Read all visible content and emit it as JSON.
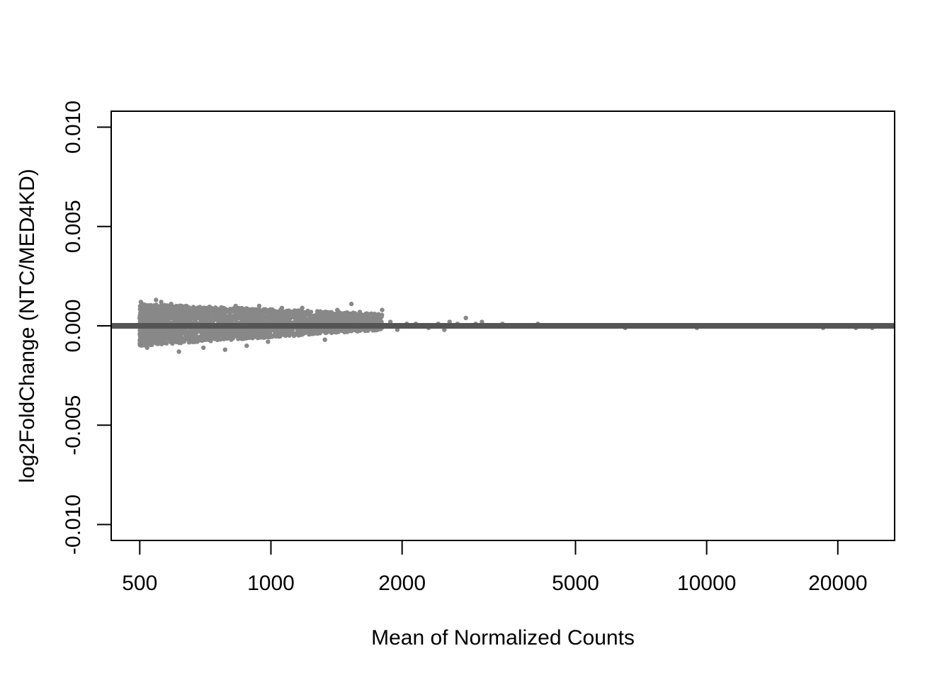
{
  "chart_data": {
    "type": "scatter",
    "title": "",
    "xlabel": "Mean of Normalized Counts",
    "ylabel": "log2FoldChange (NTC/MED4KD)",
    "x_scale": "log",
    "xlim": [
      430,
      27000
    ],
    "ylim": [
      -0.0108,
      0.0108
    ],
    "x_ticks": [
      500,
      1000,
      2000,
      5000,
      10000,
      20000
    ],
    "x_tick_labels": [
      "500",
      "1000",
      "2000",
      "5000",
      "10000",
      "20000"
    ],
    "y_ticks": [
      -0.01,
      -0.005,
      0,
      0.005,
      0.01
    ],
    "y_tick_labels": [
      "-0.010",
      "-0.005",
      "0.000",
      "0.005",
      "0.010"
    ],
    "reference_line": {
      "y": 0,
      "color": "#555555"
    },
    "point_color": "#888888",
    "grid": false,
    "dense_cloud": {
      "description_only": false,
      "x_range": [
        500,
        1800
      ],
      "y_spread_top": [
        0.0011,
        0.0006
      ],
      "y_spread_bottom": [
        -0.001,
        -0.0002
      ]
    },
    "points": [
      {
        "x": 503,
        "y": 0.0012
      },
      {
        "x": 520,
        "y": -0.0011
      },
      {
        "x": 545,
        "y": 0.0013
      },
      {
        "x": 560,
        "y": 0.0012
      },
      {
        "x": 590,
        "y": 0.0011
      },
      {
        "x": 615,
        "y": -0.0013
      },
      {
        "x": 640,
        "y": 0.001
      },
      {
        "x": 700,
        "y": -0.0011
      },
      {
        "x": 730,
        "y": 0.0009
      },
      {
        "x": 785,
        "y": -0.0012
      },
      {
        "x": 830,
        "y": 0.001
      },
      {
        "x": 880,
        "y": -0.001
      },
      {
        "x": 940,
        "y": 0.001
      },
      {
        "x": 985,
        "y": -0.0008
      },
      {
        "x": 1060,
        "y": 0.0009
      },
      {
        "x": 1130,
        "y": -0.0005
      },
      {
        "x": 1180,
        "y": 0.0009
      },
      {
        "x": 1250,
        "y": -0.0004
      },
      {
        "x": 1330,
        "y": -0.0007
      },
      {
        "x": 1420,
        "y": 0.0008
      },
      {
        "x": 1530,
        "y": 0.0011
      },
      {
        "x": 1600,
        "y": 0.0007
      },
      {
        "x": 1680,
        "y": 0.0005
      },
      {
        "x": 1730,
        "y": 0.0006
      },
      {
        "x": 1800,
        "y": 0.0008
      },
      {
        "x": 1880,
        "y": 0.0002
      },
      {
        "x": 1950,
        "y": -0.0002
      },
      {
        "x": 2050,
        "y": 0.0001
      },
      {
        "x": 2150,
        "y": 0.0001
      },
      {
        "x": 2300,
        "y": -0.0001
      },
      {
        "x": 2420,
        "y": 0.0001
      },
      {
        "x": 2500,
        "y": -0.0002
      },
      {
        "x": 2570,
        "y": 0.0002
      },
      {
        "x": 2680,
        "y": 0.0001
      },
      {
        "x": 2800,
        "y": 0.0004
      },
      {
        "x": 2950,
        "y": 0.0001
      },
      {
        "x": 3050,
        "y": 0.0002
      },
      {
        "x": 3150,
        "y": 0.0
      },
      {
        "x": 3400,
        "y": 0.0001
      },
      {
        "x": 3700,
        "y": 0.0
      },
      {
        "x": 4100,
        "y": 0.0001
      },
      {
        "x": 6500,
        "y": -0.0001
      },
      {
        "x": 9500,
        "y": -0.0001
      },
      {
        "x": 18500,
        "y": -0.0001
      },
      {
        "x": 22000,
        "y": -0.0001
      },
      {
        "x": 24000,
        "y": -0.0001
      }
    ]
  }
}
